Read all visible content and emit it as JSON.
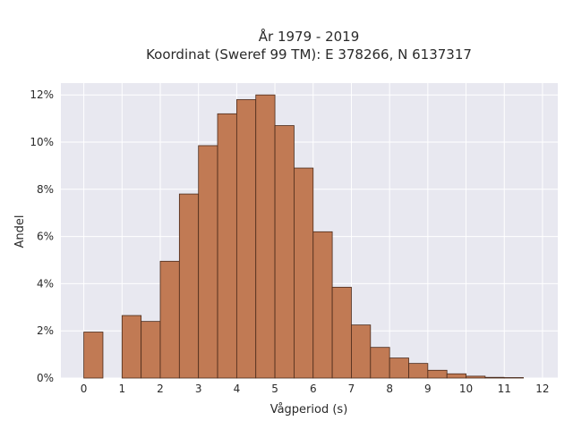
{
  "chart_data": {
    "type": "bar",
    "title_line1": "År 1979 - 2019",
    "title_line2": "Koordinat (Sweref 99 TM): E 378266, N 6137317",
    "xlabel": "Vågperiod (s)",
    "ylabel": "Andel",
    "xlim": [
      -0.6,
      12.4
    ],
    "ylim": [
      0,
      12.5
    ],
    "xticks": [
      0,
      1,
      2,
      3,
      4,
      5,
      6,
      7,
      8,
      9,
      10,
      11,
      12
    ],
    "xtick_labels": [
      "0",
      "1",
      "2",
      "3",
      "4",
      "5",
      "6",
      "7",
      "8",
      "9",
      "10",
      "11",
      "12"
    ],
    "yticks": [
      0,
      2,
      4,
      6,
      8,
      10,
      12
    ],
    "ytick_labels": [
      "0%",
      "2%",
      "4%",
      "6%",
      "8%",
      "10%",
      "12%"
    ],
    "bin_width": 0.5,
    "bins": [
      {
        "start": 0.0,
        "value": 1.95
      },
      {
        "start": 1.0,
        "value": 2.65
      },
      {
        "start": 1.5,
        "value": 2.4
      },
      {
        "start": 2.0,
        "value": 4.95
      },
      {
        "start": 2.5,
        "value": 7.8
      },
      {
        "start": 3.0,
        "value": 9.85
      },
      {
        "start": 3.5,
        "value": 11.2
      },
      {
        "start": 4.0,
        "value": 11.8
      },
      {
        "start": 4.5,
        "value": 12.0
      },
      {
        "start": 5.0,
        "value": 10.7
      },
      {
        "start": 5.5,
        "value": 8.9
      },
      {
        "start": 6.0,
        "value": 6.2
      },
      {
        "start": 6.5,
        "value": 3.85
      },
      {
        "start": 7.0,
        "value": 2.25
      },
      {
        "start": 7.5,
        "value": 1.3
      },
      {
        "start": 8.0,
        "value": 0.85
      },
      {
        "start": 8.5,
        "value": 0.62
      },
      {
        "start": 9.0,
        "value": 0.33
      },
      {
        "start": 9.5,
        "value": 0.18
      },
      {
        "start": 10.0,
        "value": 0.08
      },
      {
        "start": 10.5,
        "value": 0.03
      },
      {
        "start": 11.0,
        "value": 0.02
      }
    ],
    "grid": true,
    "colors": {
      "bar_fill": "#c17a54",
      "bar_edge": "#4a2a1a",
      "plot_bg": "#e8e8f0",
      "grid": "#ffffff"
    }
  }
}
